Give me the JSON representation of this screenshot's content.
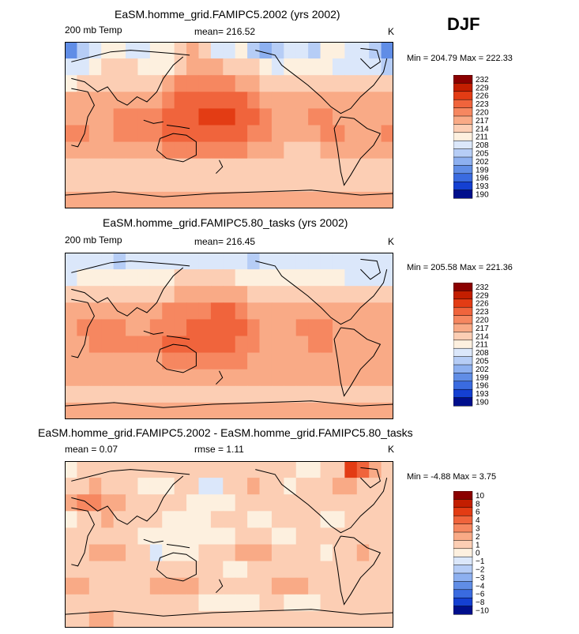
{
  "season": "DJF",
  "panels": [
    {
      "title": "EaSM.homme_grid.FAMIPC5.2002 (yrs 2002)",
      "variable": "200 mb Temp",
      "stat1": "mean= 216.52",
      "stat2": "",
      "units": "K",
      "minmax": "Min = 204.79 Max = 222.33"
    },
    {
      "title": "EaSM.homme_grid.FAMIPC5.80_tasks (yrs 2002)",
      "variable": "200 mb Temp",
      "stat1": "mean= 216.45",
      "stat2": "",
      "units": "K",
      "minmax": "Min = 205.58 Max = 221.36"
    },
    {
      "title": "EaSM.homme_grid.FAMIPC5.2002 - EaSM.homme_grid.FAMIPC5.80_tasks",
      "variable": "mean =    0.07",
      "stat1": "rmse =    1.11",
      "stat2": "",
      "units": "K",
      "minmax": "Min =   -4.88 Max =    3.75"
    }
  ],
  "chart_data": [
    {
      "type": "heatmap",
      "title": "EaSM.homme_grid.FAMIPC5.2002 (yrs 2002)",
      "variable": "200 mb Temp",
      "units": "K",
      "mean": 216.52,
      "min": 204.79,
      "max": 222.33,
      "colorbar_levels": [
        "232",
        "229",
        "226",
        "223",
        "220",
        "217",
        "214",
        "211",
        "208",
        "205",
        "202",
        "199",
        "196",
        "193",
        "190"
      ],
      "colorbar_colors": [
        "#8b0000",
        "#c31e00",
        "#e33c14",
        "#f0643c",
        "#f68760",
        "#f9aa86",
        "#fcceb4",
        "#fdf0df",
        "#dbe7fa",
        "#b6cdf6",
        "#8db0f0",
        "#608de6",
        "#3a6be0",
        "#1440d2",
        "#000f8c"
      ],
      "field_rows": [
        [
          3,
          5,
          6,
          7,
          7,
          6,
          6,
          7,
          7,
          8,
          9,
          8,
          6,
          6,
          7,
          5,
          4,
          5,
          6,
          6,
          5,
          7,
          7,
          6,
          6,
          5,
          3
        ],
        [
          6,
          6,
          7,
          8,
          8,
          8,
          7,
          7,
          7,
          8,
          9,
          9,
          9,
          8,
          8,
          8,
          7,
          6,
          7,
          7,
          7,
          7,
          6,
          6,
          6,
          6,
          5
        ],
        [
          7,
          8,
          8,
          8,
          8,
          8,
          8,
          8,
          9,
          10,
          10,
          10,
          10,
          10,
          9,
          9,
          8,
          8,
          8,
          8,
          8,
          8,
          8,
          8,
          8,
          8,
          8
        ],
        [
          9,
          9,
          9,
          9,
          9,
          9,
          9,
          9,
          10,
          11,
          11,
          11,
          11,
          11,
          11,
          10,
          9,
          9,
          9,
          9,
          9,
          9,
          9,
          9,
          9,
          9,
          9
        ],
        [
          9,
          9,
          9,
          9,
          10,
          10,
          10,
          10,
          11,
          11,
          11,
          12,
          12,
          12,
          11,
          11,
          10,
          9,
          9,
          9,
          10,
          10,
          9,
          9,
          9,
          9,
          9
        ],
        [
          10,
          10,
          9,
          9,
          10,
          10,
          10,
          10,
          11,
          11,
          11,
          11,
          11,
          11,
          11,
          10,
          10,
          9,
          9,
          9,
          9,
          10,
          10,
          9,
          9,
          9,
          10
        ],
        [
          9,
          9,
          9,
          9,
          9,
          9,
          9,
          9,
          10,
          10,
          10,
          10,
          10,
          10,
          10,
          9,
          9,
          9,
          8,
          8,
          8,
          9,
          9,
          9,
          9,
          9,
          9
        ],
        [
          8,
          8,
          8,
          8,
          8,
          8,
          8,
          8,
          8,
          8,
          8,
          8,
          8,
          8,
          8,
          8,
          8,
          8,
          8,
          8,
          8,
          8,
          8,
          8,
          8,
          8,
          8
        ],
        [
          8,
          8,
          8,
          8,
          8,
          8,
          8,
          8,
          8,
          8,
          8,
          8,
          8,
          8,
          8,
          8,
          8,
          8,
          8,
          8,
          8,
          8,
          8,
          8,
          8,
          8,
          8
        ],
        [
          9,
          9,
          9,
          9,
          9,
          9,
          9,
          9,
          9,
          9,
          9,
          9,
          9,
          9,
          9,
          9,
          9,
          9,
          9,
          9,
          9,
          9,
          9,
          9,
          9,
          9,
          9
        ]
      ]
    },
    {
      "type": "heatmap",
      "title": "EaSM.homme_grid.FAMIPC5.80_tasks (yrs 2002)",
      "variable": "200 mb Temp",
      "units": "K",
      "mean": 216.45,
      "min": 205.58,
      "max": 221.36,
      "colorbar_levels": [
        "232",
        "229",
        "226",
        "223",
        "220",
        "217",
        "214",
        "211",
        "208",
        "205",
        "202",
        "199",
        "196",
        "193",
        "190"
      ],
      "colorbar_colors": [
        "#8b0000",
        "#c31e00",
        "#e33c14",
        "#f0643c",
        "#f68760",
        "#f9aa86",
        "#fcceb4",
        "#fdf0df",
        "#dbe7fa",
        "#b6cdf6",
        "#8db0f0",
        "#608de6",
        "#3a6be0",
        "#1440d2",
        "#000f8c"
      ],
      "field_rows": [
        [
          6,
          6,
          6,
          6,
          5,
          6,
          6,
          6,
          6,
          6,
          6,
          6,
          6,
          6,
          6,
          5,
          6,
          6,
          6,
          6,
          6,
          6,
          6,
          6,
          6,
          6,
          6
        ],
        [
          6,
          7,
          7,
          7,
          7,
          7,
          7,
          7,
          7,
          8,
          8,
          8,
          8,
          8,
          7,
          7,
          7,
          7,
          7,
          7,
          7,
          7,
          7,
          6,
          6,
          6,
          6
        ],
        [
          8,
          8,
          8,
          8,
          8,
          8,
          8,
          8,
          8,
          9,
          9,
          9,
          9,
          9,
          9,
          8,
          8,
          8,
          8,
          8,
          8,
          8,
          8,
          8,
          8,
          8,
          8
        ],
        [
          9,
          9,
          9,
          9,
          9,
          9,
          9,
          9,
          10,
          10,
          10,
          10,
          11,
          11,
          10,
          9,
          9,
          9,
          9,
          9,
          9,
          9,
          9,
          9,
          9,
          9,
          9
        ],
        [
          9,
          10,
          10,
          10,
          10,
          9,
          9,
          10,
          10,
          10,
          11,
          11,
          11,
          11,
          11,
          10,
          9,
          9,
          9,
          10,
          10,
          10,
          9,
          9,
          9,
          9,
          9
        ],
        [
          9,
          9,
          10,
          10,
          10,
          10,
          10,
          10,
          11,
          11,
          11,
          11,
          11,
          11,
          10,
          10,
          9,
          9,
          9,
          9,
          10,
          10,
          9,
          9,
          9,
          9,
          9
        ],
        [
          9,
          9,
          9,
          9,
          9,
          9,
          9,
          9,
          10,
          10,
          10,
          10,
          10,
          10,
          10,
          9,
          9,
          9,
          9,
          9,
          9,
          9,
          9,
          9,
          9,
          9,
          9
        ],
        [
          9,
          9,
          9,
          9,
          9,
          9,
          9,
          9,
          9,
          9,
          9,
          9,
          9,
          9,
          9,
          9,
          9,
          9,
          9,
          9,
          9,
          9,
          9,
          9,
          9,
          9,
          9
        ],
        [
          8,
          8,
          8,
          8,
          8,
          8,
          8,
          8,
          8,
          8,
          8,
          8,
          8,
          8,
          8,
          8,
          8,
          8,
          8,
          8,
          8,
          8,
          8,
          8,
          8,
          8,
          8
        ],
        [
          9,
          9,
          9,
          9,
          9,
          9,
          9,
          9,
          9,
          9,
          9,
          9,
          9,
          9,
          9,
          9,
          9,
          9,
          9,
          9,
          9,
          9,
          9,
          9,
          9,
          9,
          9
        ]
      ]
    },
    {
      "type": "heatmap",
      "title": "EaSM.homme_grid.FAMIPC5.2002 - EaSM.homme_grid.FAMIPC5.80_tasks",
      "units": "K",
      "mean": 0.07,
      "rmse": 1.11,
      "min": -4.88,
      "max": 3.75,
      "colorbar_levels": [
        "10",
        "8",
        "6",
        "4",
        "3",
        "2",
        "1",
        "0",
        "−1",
        "−2",
        "−3",
        "−4",
        "−6",
        "−8",
        "−10"
      ],
      "colorbar_colors": [
        "#8b0000",
        "#c31e00",
        "#e33c14",
        "#f0643c",
        "#f68760",
        "#f9aa86",
        "#fcceb4",
        "#fdf0df",
        "#dbe7fa",
        "#b6cdf6",
        "#8db0f0",
        "#608de6",
        "#3a6be0",
        "#1440d2",
        "#000f8c"
      ],
      "field_rows": [
        [
          7,
          8,
          8,
          8,
          8,
          8,
          8,
          8,
          8,
          8,
          8,
          8,
          8,
          8,
          8,
          8,
          8,
          8,
          8,
          7,
          7,
          8,
          8,
          12,
          11,
          9,
          8
        ],
        [
          8,
          8,
          9,
          8,
          8,
          8,
          7,
          7,
          7,
          8,
          8,
          6,
          6,
          8,
          8,
          9,
          8,
          8,
          7,
          8,
          8,
          8,
          9,
          9,
          8,
          8,
          8
        ],
        [
          9,
          10,
          10,
          9,
          9,
          8,
          8,
          8,
          8,
          8,
          7,
          7,
          7,
          7,
          8,
          8,
          8,
          8,
          8,
          8,
          8,
          8,
          8,
          8,
          8,
          8,
          8
        ],
        [
          7,
          8,
          8,
          9,
          8,
          8,
          8,
          8,
          7,
          7,
          7,
          7,
          8,
          8,
          8,
          7,
          7,
          8,
          8,
          8,
          8,
          7,
          7,
          8,
          8,
          8,
          8
        ],
        [
          8,
          8,
          8,
          8,
          8,
          8,
          7,
          7,
          7,
          7,
          7,
          7,
          7,
          7,
          8,
          8,
          8,
          7,
          7,
          8,
          8,
          8,
          8,
          8,
          8,
          8,
          8
        ],
        [
          8,
          8,
          9,
          9,
          9,
          8,
          8,
          6,
          7,
          7,
          7,
          8,
          8,
          8,
          9,
          9,
          9,
          8,
          8,
          8,
          8,
          7,
          8,
          8,
          9,
          8,
          8
        ],
        [
          8,
          8,
          8,
          8,
          8,
          8,
          8,
          8,
          8,
          8,
          8,
          8,
          8,
          7,
          7,
          8,
          8,
          8,
          8,
          8,
          8,
          8,
          8,
          8,
          8,
          8,
          8
        ],
        [
          9,
          9,
          8,
          8,
          8,
          8,
          8,
          9,
          9,
          9,
          9,
          8,
          8,
          8,
          8,
          8,
          8,
          9,
          9,
          9,
          8,
          8,
          8,
          8,
          8,
          8,
          8
        ],
        [
          8,
          8,
          8,
          8,
          8,
          8,
          8,
          8,
          8,
          8,
          8,
          7,
          7,
          7,
          7,
          7,
          8,
          8,
          7,
          7,
          7,
          8,
          8,
          8,
          8,
          8,
          8
        ],
        [
          8,
          8,
          9,
          9,
          8,
          8,
          8,
          8,
          8,
          8,
          8,
          8,
          8,
          8,
          8,
          8,
          8,
          8,
          8,
          8,
          8,
          8,
          8,
          8,
          8,
          8,
          8
        ]
      ]
    }
  ]
}
